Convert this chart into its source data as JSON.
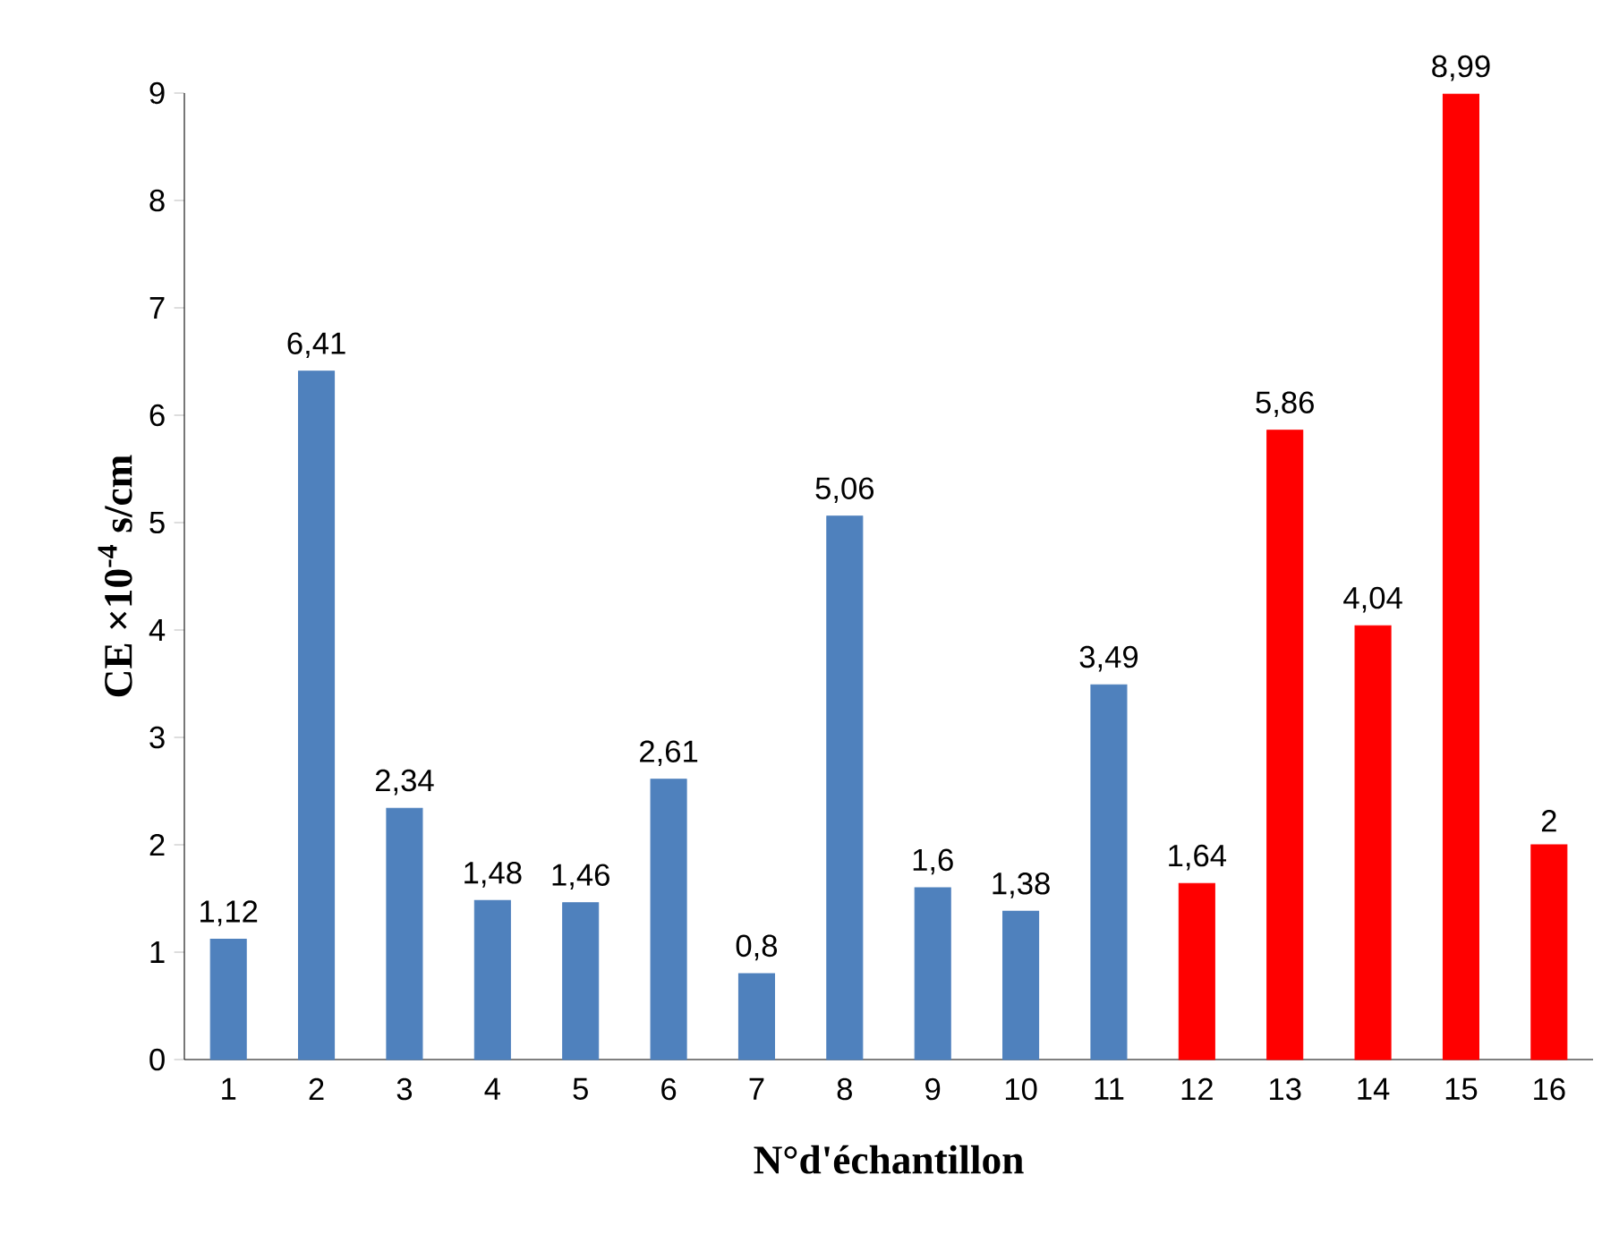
{
  "chart_data": {
    "type": "bar",
    "xlabel": "N°d'échantillon",
    "ylabel": "CE ×10$^{-4}$ s/cm",
    "categories": [
      "1",
      "2",
      "3",
      "4",
      "5",
      "6",
      "7",
      "8",
      "9",
      "10",
      "11",
      "12",
      "13",
      "14",
      "15",
      "16"
    ],
    "values": [
      1.12,
      6.41,
      2.34,
      1.48,
      1.46,
      2.61,
      0.8,
      5.06,
      1.6,
      1.38,
      3.49,
      1.64,
      5.86,
      4.04,
      8.99,
      2
    ],
    "value_labels": [
      "1,12",
      "6,41",
      "2,34",
      "1,48",
      "1,46",
      "2,61",
      "0,8",
      "5,06",
      "1,6",
      "1,38",
      "3,49",
      "1,64",
      "5,86",
      "4,04",
      "8,99",
      "2"
    ],
    "colors": [
      "#4f81bd",
      "#4f81bd",
      "#4f81bd",
      "#4f81bd",
      "#4f81bd",
      "#4f81bd",
      "#4f81bd",
      "#4f81bd",
      "#4f81bd",
      "#4f81bd",
      "#4f81bd",
      "#ff0000",
      "#ff0000",
      "#ff0000",
      "#ff0000",
      "#ff0000"
    ],
    "ylim": [
      0,
      9
    ],
    "yticks": [
      0,
      1,
      2,
      3,
      4,
      5,
      6,
      7,
      8,
      9
    ]
  }
}
